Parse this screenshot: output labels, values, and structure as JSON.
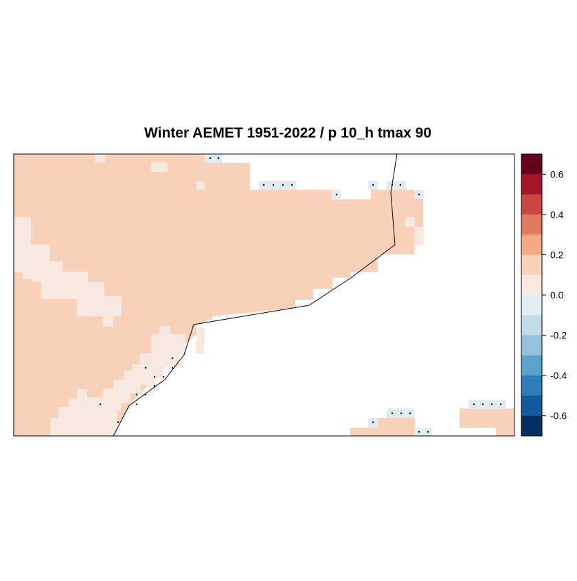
{
  "title": "Winter AEMET 1951-2022 / p 10_h tmax 90",
  "colorbar": {
    "ticks": [
      "0.6",
      "0.4",
      "0.2",
      "0.0",
      "-0.2",
      "-0.4",
      "-0.6"
    ],
    "colors": [
      "#67001f",
      "#a51529",
      "#c94741",
      "#e17860",
      "#f5a886",
      "#f9d0b8",
      "#f7e8e1",
      "#e1ebf2",
      "#c3dcea",
      "#93c2de",
      "#5aa2cd",
      "#2d7db8",
      "#155aa0",
      "#053061"
    ]
  },
  "map": {
    "ocean_color": "#ffffff",
    "value_colors": {
      "p2": "#f9d0b8",
      "p1": "#f7e8e1",
      "n1": "#e1ebf2"
    },
    "coastline_color": "#000000",
    "significance_marker": "dot"
  }
}
